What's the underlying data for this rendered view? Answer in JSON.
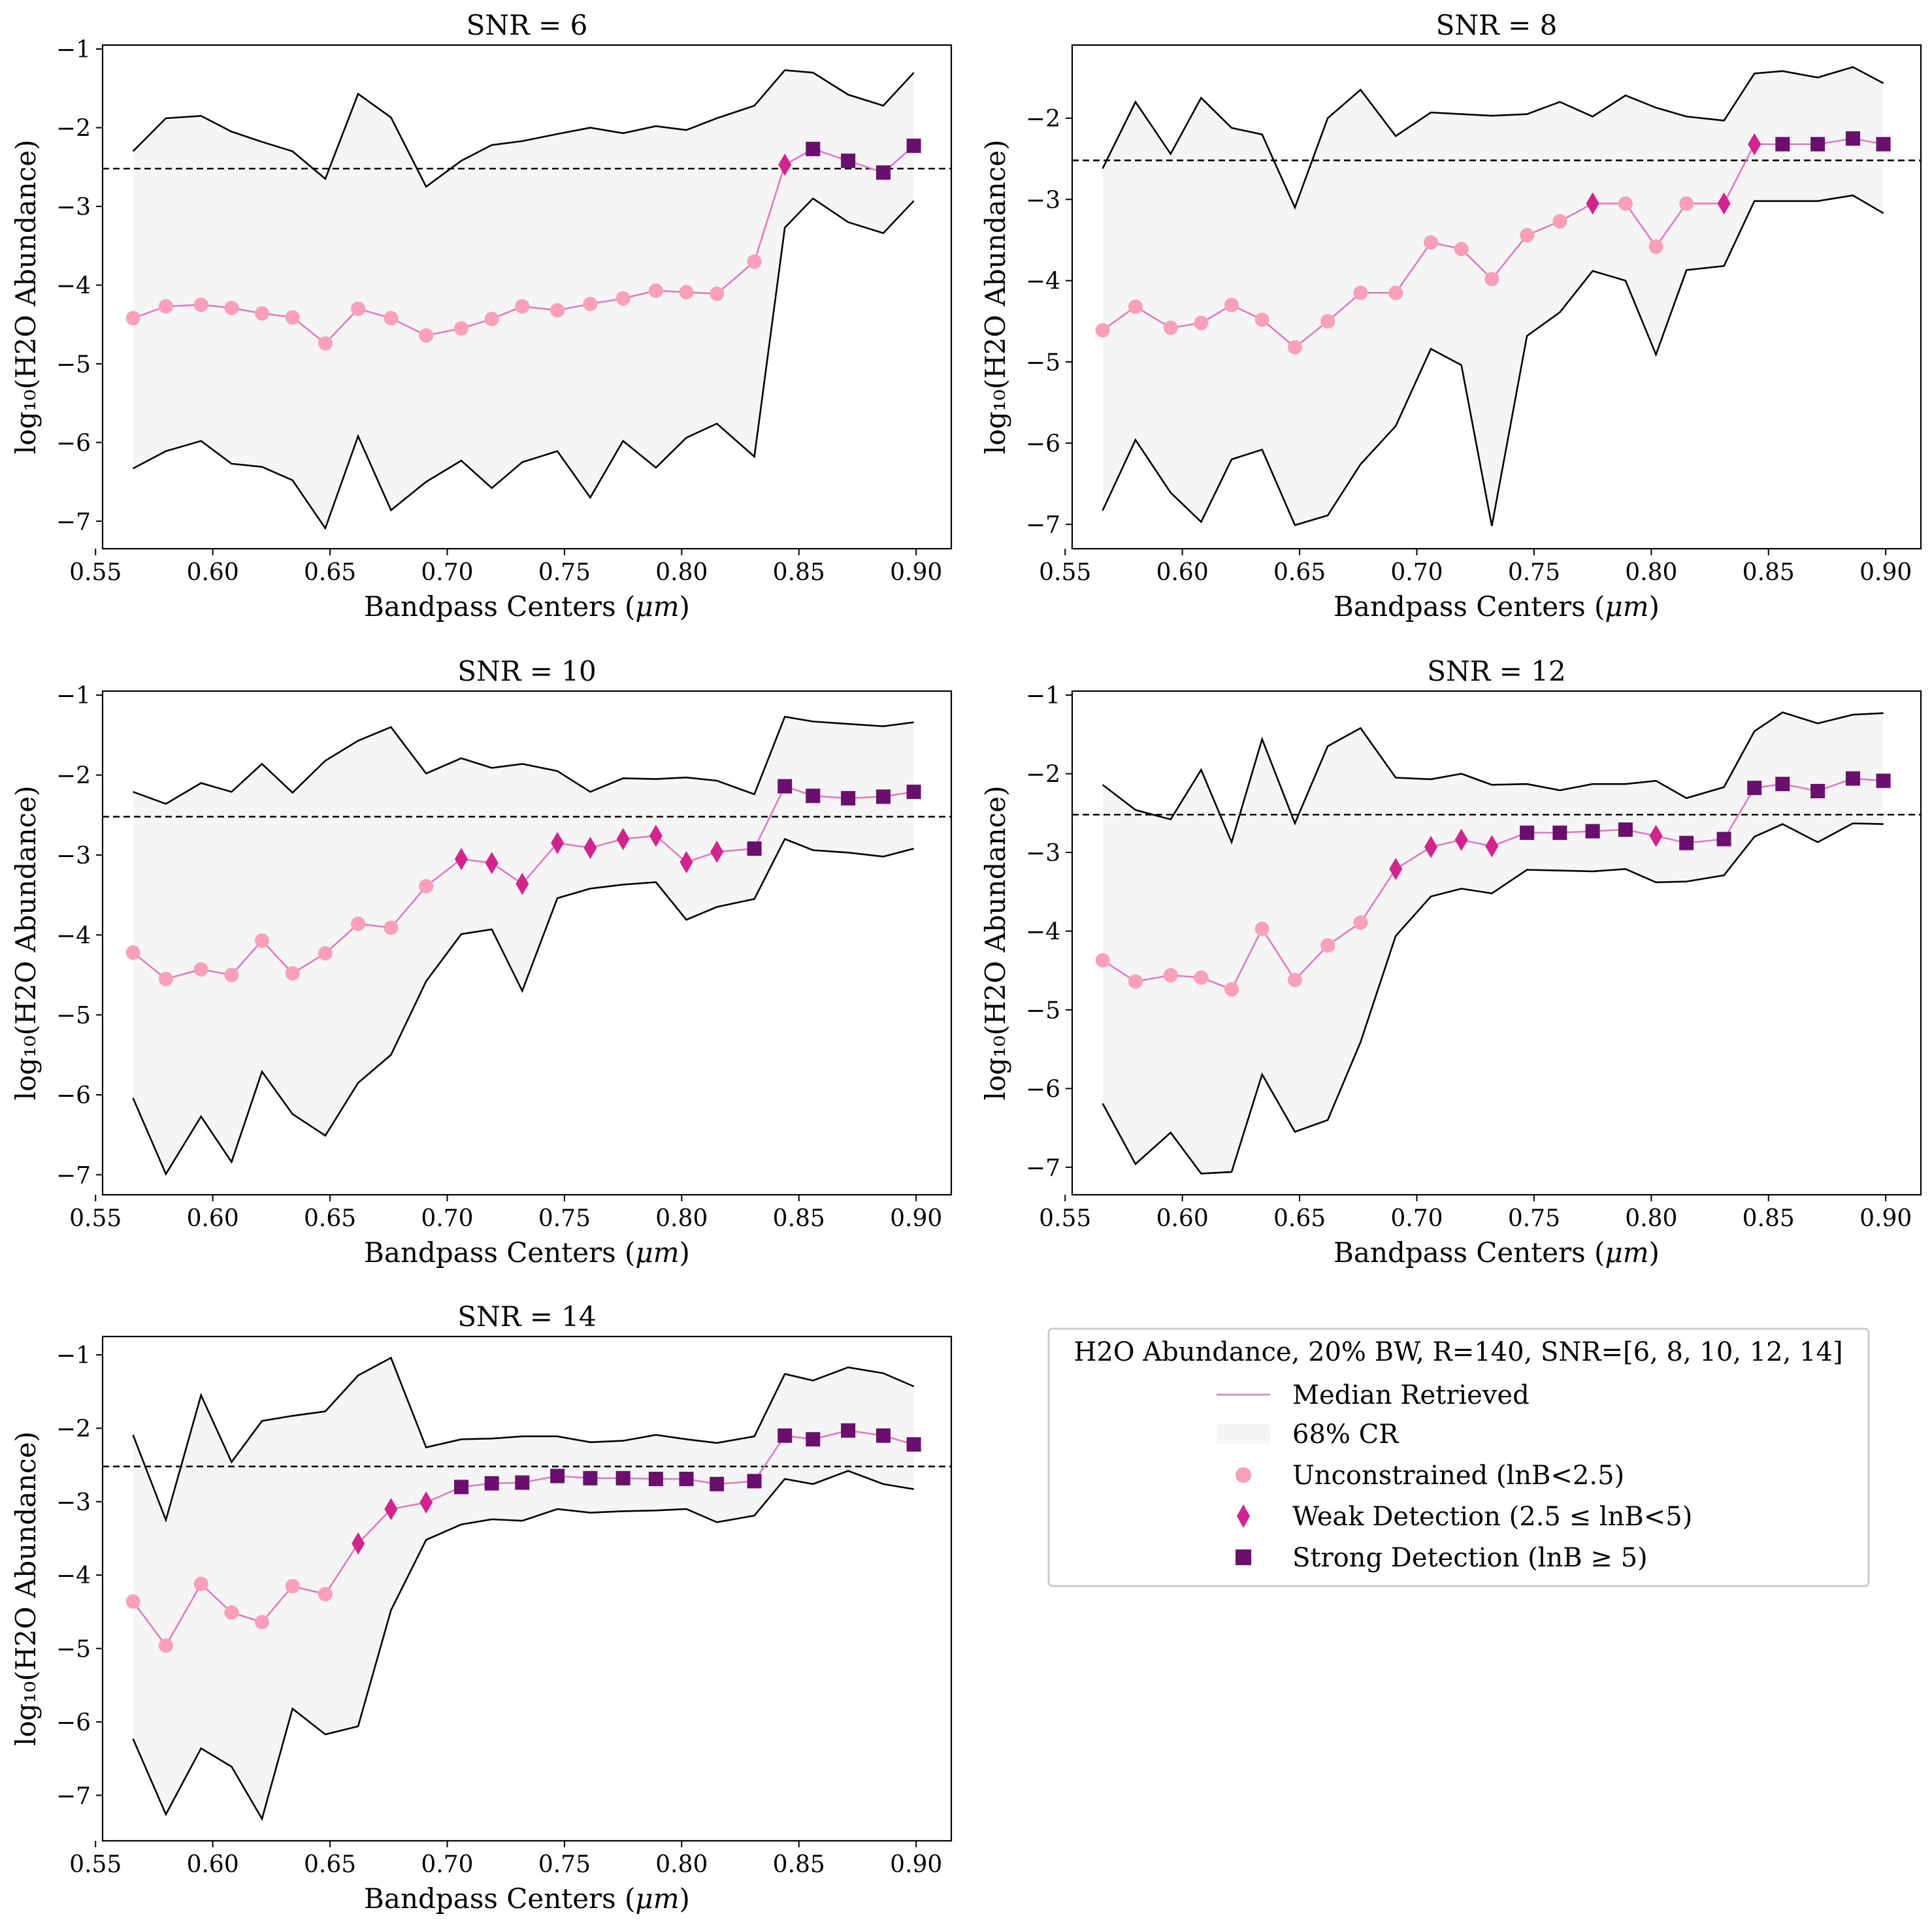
{
  "figure": {
    "x": [
      0.566,
      0.58,
      0.595,
      0.608,
      0.621,
      0.634,
      0.648,
      0.662,
      0.676,
      0.691,
      0.706,
      0.719,
      0.732,
      0.747,
      0.761,
      0.775,
      0.789,
      0.802,
      0.815,
      0.831,
      0.844,
      0.856,
      0.871,
      0.886,
      0.899
    ],
    "true_value": -2.52,
    "colors": {
      "median_line": "#e377c2",
      "cr_fill": "#f5f5f5",
      "bounds": "#000000",
      "unconstrained": "#fba0b8",
      "weak": "#d4238c",
      "strong": "#6a0f6e",
      "truth_line": "#000000"
    }
  },
  "chart_data": [
    {
      "type": "line",
      "title": "SNR = 6",
      "xlabel_main": "Bandpass Centers (",
      "xlabel_unit": "μm",
      "xlabel_end": ")",
      "ylabel": "log₁₀(H2O Abundance)",
      "xlim": [
        0.553,
        0.915
      ],
      "ylim": [
        -7.35,
        -0.95
      ],
      "xticks": [
        0.55,
        0.6,
        0.65,
        0.7,
        0.75,
        0.8,
        0.85,
        0.9
      ],
      "xticklabels": [
        "0.55",
        "0.60",
        "0.65",
        "0.70",
        "0.75",
        "0.80",
        "0.85",
        "0.90"
      ],
      "yticks": [
        -7,
        -6,
        -5,
        -4,
        -3,
        -2,
        -1
      ],
      "yticklabels": [
        "−7",
        "−6",
        "−5",
        "−4",
        "−3",
        "−2",
        "−1"
      ],
      "upper": [
        -2.3,
        -1.88,
        -1.85,
        -2.05,
        -2.18,
        -2.3,
        -2.65,
        -1.57,
        -1.87,
        -2.75,
        -2.42,
        -2.22,
        -2.17,
        -2.08,
        -2.0,
        -2.07,
        -1.98,
        -2.03,
        -1.88,
        -1.72,
        -1.27,
        -1.3,
        -1.58,
        -1.72,
        -1.3
      ],
      "median": [
        -4.42,
        -4.27,
        -4.25,
        -4.29,
        -4.36,
        -4.41,
        -4.74,
        -4.3,
        -4.42,
        -4.64,
        -4.55,
        -4.43,
        -4.27,
        -4.32,
        -4.24,
        -4.17,
        -4.07,
        -4.09,
        -4.11,
        -3.7,
        -2.47,
        -2.27,
        -2.42,
        -2.57,
        -2.23
      ],
      "lower": [
        -6.33,
        -6.11,
        -5.98,
        -6.27,
        -6.31,
        -6.48,
        -7.09,
        -5.92,
        -6.86,
        -6.5,
        -6.23,
        -6.58,
        -6.25,
        -6.11,
        -6.7,
        -5.98,
        -6.32,
        -5.94,
        -5.76,
        -6.18,
        -3.27,
        -2.9,
        -3.2,
        -3.34,
        -2.93
      ],
      "detection": [
        "U",
        "U",
        "U",
        "U",
        "U",
        "U",
        "U",
        "U",
        "U",
        "U",
        "U",
        "U",
        "U",
        "U",
        "U",
        "U",
        "U",
        "U",
        "U",
        "U",
        "W",
        "S",
        "S",
        "S",
        "S"
      ]
    },
    {
      "type": "line",
      "title": "SNR = 8",
      "xlabel_main": "Bandpass Centers (",
      "xlabel_unit": "μm",
      "xlabel_end": ")",
      "ylabel": "log₁₀(H2O Abundance)",
      "xlim": [
        0.553,
        0.915
      ],
      "ylim": [
        -7.3,
        -1.1
      ],
      "xticks": [
        0.55,
        0.6,
        0.65,
        0.7,
        0.75,
        0.8,
        0.85,
        0.9
      ],
      "xticklabels": [
        "0.55",
        "0.60",
        "0.65",
        "0.70",
        "0.75",
        "0.80",
        "0.85",
        "0.90"
      ],
      "yticks": [
        -7,
        -6,
        -5,
        -4,
        -3,
        -2
      ],
      "yticklabels": [
        "−7",
        "−6",
        "−5",
        "−4",
        "−3",
        "−2"
      ],
      "upper": [
        -2.62,
        -1.8,
        -2.44,
        -1.75,
        -2.12,
        -2.2,
        -3.1,
        -2.0,
        -1.65,
        -2.22,
        -1.93,
        -1.95,
        -1.97,
        -1.95,
        -1.8,
        -1.98,
        -1.72,
        -1.87,
        -1.98,
        -2.03,
        -1.45,
        -1.42,
        -1.5,
        -1.37,
        -1.57
      ],
      "median": [
        -4.61,
        -4.32,
        -4.58,
        -4.52,
        -4.3,
        -4.48,
        -4.82,
        -4.5,
        -4.15,
        -4.15,
        -3.53,
        -3.61,
        -3.98,
        -3.44,
        -3.27,
        -3.05,
        -3.05,
        -3.58,
        -3.05,
        -3.05,
        -2.32,
        -2.32,
        -2.32,
        -2.25,
        -2.32
      ],
      "lower": [
        -6.83,
        -5.96,
        -6.61,
        -6.97,
        -6.2,
        -6.08,
        -7.01,
        -6.89,
        -6.26,
        -5.79,
        -4.84,
        -5.04,
        -7.02,
        -4.68,
        -4.39,
        -3.88,
        -4.0,
        -4.91,
        -3.87,
        -3.82,
        -3.02,
        -3.02,
        -3.02,
        -2.95,
        -3.17
      ],
      "detection": [
        "U",
        "U",
        "U",
        "U",
        "U",
        "U",
        "U",
        "U",
        "U",
        "U",
        "U",
        "U",
        "U",
        "U",
        "U",
        "W",
        "U",
        "U",
        "U",
        "W",
        "W",
        "S",
        "S",
        "S",
        "S"
      ]
    },
    {
      "type": "line",
      "title": "SNR = 10",
      "xlabel_main": "Bandpass Centers (",
      "xlabel_unit": "μm",
      "xlabel_end": ")",
      "ylabel": "log₁₀(H2O Abundance)",
      "xlim": [
        0.553,
        0.915
      ],
      "ylim": [
        -7.25,
        -0.95
      ],
      "xticks": [
        0.55,
        0.6,
        0.65,
        0.7,
        0.75,
        0.8,
        0.85,
        0.9
      ],
      "xticklabels": [
        "0.55",
        "0.60",
        "0.65",
        "0.70",
        "0.75",
        "0.80",
        "0.85",
        "0.90"
      ],
      "yticks": [
        -7,
        -6,
        -5,
        -4,
        -3,
        -2,
        -1
      ],
      "yticklabels": [
        "−7",
        "−6",
        "−5",
        "−4",
        "−3",
        "−2",
        "−1"
      ],
      "upper": [
        -2.21,
        -2.36,
        -2.1,
        -2.21,
        -1.86,
        -2.22,
        -1.82,
        -1.57,
        -1.4,
        -1.98,
        -1.79,
        -1.91,
        -1.86,
        -1.95,
        -2.21,
        -2.04,
        -2.05,
        -2.03,
        -2.07,
        -2.24,
        -1.27,
        -1.33,
        -1.36,
        -1.39,
        -1.34
      ],
      "median": [
        -4.22,
        -4.55,
        -4.43,
        -4.5,
        -4.07,
        -4.48,
        -4.23,
        -3.86,
        -3.91,
        -3.39,
        -3.05,
        -3.1,
        -3.36,
        -2.85,
        -2.91,
        -2.8,
        -2.76,
        -3.09,
        -2.96,
        -2.92,
        -2.14,
        -2.26,
        -2.29,
        -2.27,
        -2.21
      ],
      "lower": [
        -6.04,
        -6.99,
        -6.27,
        -6.84,
        -5.71,
        -6.24,
        -6.51,
        -5.85,
        -5.5,
        -4.58,
        -3.99,
        -3.93,
        -4.7,
        -3.54,
        -3.42,
        -3.37,
        -3.34,
        -3.81,
        -3.65,
        -3.55,
        -2.8,
        -2.94,
        -2.97,
        -3.02,
        -2.92
      ],
      "detection": [
        "U",
        "U",
        "U",
        "U",
        "U",
        "U",
        "U",
        "U",
        "U",
        "U",
        "W",
        "W",
        "W",
        "W",
        "W",
        "W",
        "W",
        "W",
        "W",
        "S",
        "S",
        "S",
        "S",
        "S",
        "S"
      ]
    },
    {
      "type": "line",
      "title": "SNR = 12",
      "xlabel_main": "Bandpass Centers (",
      "xlabel_unit": "μm",
      "xlabel_end": ")",
      "ylabel": "log₁₀(H2O Abundance)",
      "xlim": [
        0.553,
        0.915
      ],
      "ylim": [
        -7.35,
        -0.95
      ],
      "xticks": [
        0.55,
        0.6,
        0.65,
        0.7,
        0.75,
        0.8,
        0.85,
        0.9
      ],
      "xticklabels": [
        "0.55",
        "0.60",
        "0.65",
        "0.70",
        "0.75",
        "0.80",
        "0.85",
        "0.90"
      ],
      "yticks": [
        -7,
        -6,
        -5,
        -4,
        -3,
        -2,
        -1
      ],
      "yticklabels": [
        "−7",
        "−6",
        "−5",
        "−4",
        "−3",
        "−2",
        "−1"
      ],
      "upper": [
        -2.14,
        -2.46,
        -2.58,
        -1.95,
        -2.87,
        -1.56,
        -2.63,
        -1.65,
        -1.42,
        -2.05,
        -2.07,
        -2.0,
        -2.14,
        -2.13,
        -2.21,
        -2.13,
        -2.13,
        -2.09,
        -2.31,
        -2.17,
        -1.46,
        -1.22,
        -1.36,
        -1.25,
        -1.23
      ],
      "median": [
        -4.37,
        -4.64,
        -4.56,
        -4.59,
        -4.74,
        -3.97,
        -4.62,
        -4.18,
        -3.89,
        -3.21,
        -2.93,
        -2.84,
        -2.92,
        -2.75,
        -2.75,
        -2.73,
        -2.71,
        -2.79,
        -2.88,
        -2.83,
        -2.18,
        -2.13,
        -2.22,
        -2.06,
        -2.09
      ],
      "lower": [
        -6.19,
        -6.96,
        -6.56,
        -7.08,
        -7.06,
        -5.82,
        -6.55,
        -6.4,
        -5.41,
        -4.06,
        -3.56,
        -3.46,
        -3.52,
        -3.22,
        -3.23,
        -3.24,
        -3.21,
        -3.38,
        -3.37,
        -3.29,
        -2.8,
        -2.64,
        -2.87,
        -2.63,
        -2.64
      ],
      "detection": [
        "U",
        "U",
        "U",
        "U",
        "U",
        "U",
        "U",
        "U",
        "U",
        "W",
        "W",
        "W",
        "W",
        "S",
        "S",
        "S",
        "S",
        "W",
        "S",
        "S",
        "S",
        "S",
        "S",
        "S",
        "S"
      ]
    },
    {
      "type": "line",
      "title": "SNR = 14",
      "xlabel_main": "Bandpass Centers (",
      "xlabel_unit": "μm",
      "xlabel_end": ")",
      "ylabel": "log₁₀(H2O Abundance)",
      "xlim": [
        0.553,
        0.915
      ],
      "ylim": [
        -7.62,
        -0.75
      ],
      "xticks": [
        0.55,
        0.6,
        0.65,
        0.7,
        0.75,
        0.8,
        0.85,
        0.9
      ],
      "xticklabels": [
        "0.55",
        "0.60",
        "0.65",
        "0.70",
        "0.75",
        "0.80",
        "0.85",
        "0.90"
      ],
      "yticks": [
        -7,
        -6,
        -5,
        -4,
        -3,
        -2,
        -1
      ],
      "yticklabels": [
        "−7",
        "−6",
        "−5",
        "−4",
        "−3",
        "−2",
        "−1"
      ],
      "upper": [
        -2.09,
        -3.25,
        -1.55,
        -2.46,
        -1.9,
        -1.83,
        -1.77,
        -1.28,
        -1.04,
        -2.26,
        -2.15,
        -2.14,
        -2.11,
        -2.11,
        -2.19,
        -2.17,
        -2.09,
        -2.15,
        -2.2,
        -2.11,
        -1.26,
        -1.35,
        -1.17,
        -1.25,
        -1.43
      ],
      "median": [
        -4.36,
        -4.96,
        -4.12,
        -4.51,
        -4.64,
        -4.15,
        -4.26,
        -3.57,
        -3.1,
        -3.01,
        -2.8,
        -2.75,
        -2.74,
        -2.65,
        -2.68,
        -2.68,
        -2.69,
        -2.69,
        -2.76,
        -2.72,
        -2.1,
        -2.15,
        -2.03,
        -2.1,
        -2.22
      ],
      "lower": [
        -6.23,
        -7.26,
        -6.36,
        -6.61,
        -7.32,
        -5.82,
        -6.17,
        -6.06,
        -4.48,
        -3.52,
        -3.31,
        -3.24,
        -3.26,
        -3.1,
        -3.15,
        -3.13,
        -3.12,
        -3.1,
        -3.28,
        -3.19,
        -2.69,
        -2.76,
        -2.58,
        -2.76,
        -2.83
      ],
      "detection": [
        "U",
        "U",
        "U",
        "U",
        "U",
        "U",
        "U",
        "W",
        "W",
        "W",
        "S",
        "S",
        "S",
        "S",
        "S",
        "S",
        "S",
        "S",
        "S",
        "S",
        "S",
        "S",
        "S",
        "S",
        "S"
      ]
    }
  ],
  "legend": {
    "title": "H2O Abundance, 20% BW, R=140, SNR=[6, 8, 10, 12, 14]",
    "items": [
      {
        "key": "median",
        "label": "Median Retrieved"
      },
      {
        "key": "cr",
        "label": "68% CR"
      },
      {
        "key": "unconstrained",
        "label": "Unconstrained (lnB<2.5)"
      },
      {
        "key": "weak",
        "label": "Weak Detection (2.5 ≤ lnB<5)"
      },
      {
        "key": "strong",
        "label": "Strong Detection (lnB ≥ 5)"
      }
    ]
  }
}
